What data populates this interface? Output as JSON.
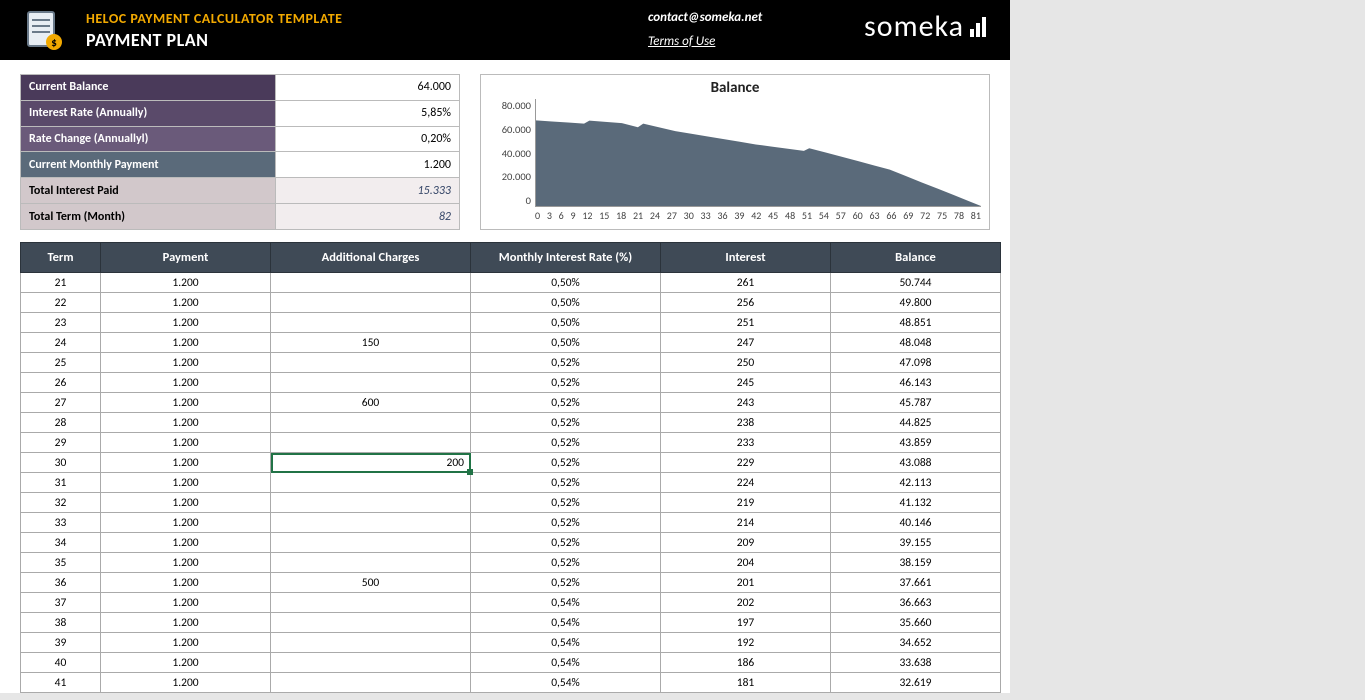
{
  "header": {
    "title1": "HELOC PAYMENT CALCULATOR TEMPLATE",
    "title2": "PAYMENT PLAN",
    "contact": "contact@someka.net",
    "terms": "Terms of Use",
    "logo": "someka"
  },
  "summary": [
    {
      "label": "Current Balance",
      "value": "64.000",
      "lab_cls": "purple1",
      "val_cls": ""
    },
    {
      "label": "Interest Rate (Annually)",
      "value": "5,85%",
      "lab_cls": "purple2",
      "val_cls": ""
    },
    {
      "label": "Rate Change (Annuallyl)",
      "value": "0,20%",
      "lab_cls": "purple3",
      "val_cls": ""
    },
    {
      "label": "Current Monthly Payment",
      "value": "1.200",
      "lab_cls": "slate",
      "val_cls": ""
    },
    {
      "label": "Total Interest Paid",
      "value": "15.333",
      "lab_cls": "gray1",
      "val_cls": "ital"
    },
    {
      "label": "Total Term (Month)",
      "value": "82",
      "lab_cls": "gray2",
      "val_cls": "ital"
    }
  ],
  "chart": {
    "title": "Balance",
    "ymax": 80000,
    "ytick_step": 20000,
    "yticks": [
      "80.000",
      "60.000",
      "40.000",
      "20.000",
      "0"
    ],
    "xticks": [
      "0",
      "3",
      "6",
      "9",
      "12",
      "15",
      "18",
      "21",
      "24",
      "27",
      "30",
      "33",
      "36",
      "39",
      "42",
      "45",
      "48",
      "51",
      "54",
      "57",
      "60",
      "63",
      "66",
      "69",
      "72",
      "75",
      "78",
      "81"
    ],
    "fill_color": "#5a6a7a",
    "background_color": "#ffffff",
    "points_norm": [
      [
        0,
        0.8
      ],
      [
        0.036,
        0.79
      ],
      [
        0.072,
        0.78
      ],
      [
        0.108,
        0.77
      ],
      [
        0.12,
        0.798
      ],
      [
        0.156,
        0.786
      ],
      [
        0.193,
        0.774
      ],
      [
        0.229,
        0.736
      ],
      [
        0.241,
        0.77
      ],
      [
        0.277,
        0.735
      ],
      [
        0.313,
        0.7
      ],
      [
        0.349,
        0.675
      ],
      [
        0.386,
        0.65
      ],
      [
        0.422,
        0.625
      ],
      [
        0.458,
        0.6
      ],
      [
        0.494,
        0.575
      ],
      [
        0.53,
        0.555
      ],
      [
        0.566,
        0.535
      ],
      [
        0.602,
        0.515
      ],
      [
        0.614,
        0.54
      ],
      [
        0.651,
        0.5
      ],
      [
        0.687,
        0.46
      ],
      [
        0.723,
        0.42
      ],
      [
        0.759,
        0.38
      ],
      [
        0.795,
        0.34
      ],
      [
        0.831,
        0.28
      ],
      [
        0.867,
        0.22
      ],
      [
        0.904,
        0.16
      ],
      [
        0.94,
        0.1
      ],
      [
        0.976,
        0.04
      ],
      [
        1.0,
        0.0
      ]
    ]
  },
  "table": {
    "columns": [
      "Term",
      "Payment",
      "Additional Charges",
      "Monthly Interest Rate (%)",
      "Interest",
      "Balance"
    ],
    "selected_cell": {
      "row_idx": 9,
      "col_idx": 2
    },
    "rows": [
      [
        "21",
        "1.200",
        "",
        "0,50%",
        "261",
        "50.744"
      ],
      [
        "22",
        "1.200",
        "",
        "0,50%",
        "256",
        "49.800"
      ],
      [
        "23",
        "1.200",
        "",
        "0,50%",
        "251",
        "48.851"
      ],
      [
        "24",
        "1.200",
        "150",
        "0,50%",
        "247",
        "48.048"
      ],
      [
        "25",
        "1.200",
        "",
        "0,52%",
        "250",
        "47.098"
      ],
      [
        "26",
        "1.200",
        "",
        "0,52%",
        "245",
        "46.143"
      ],
      [
        "27",
        "1.200",
        "600",
        "0,52%",
        "243",
        "45.787"
      ],
      [
        "28",
        "1.200",
        "",
        "0,52%",
        "238",
        "44.825"
      ],
      [
        "29",
        "1.200",
        "",
        "0,52%",
        "233",
        "43.859"
      ],
      [
        "30",
        "1.200",
        "200",
        "0,52%",
        "229",
        "43.088"
      ],
      [
        "31",
        "1.200",
        "",
        "0,52%",
        "224",
        "42.113"
      ],
      [
        "32",
        "1.200",
        "",
        "0,52%",
        "219",
        "41.132"
      ],
      [
        "33",
        "1.200",
        "",
        "0,52%",
        "214",
        "40.146"
      ],
      [
        "34",
        "1.200",
        "",
        "0,52%",
        "209",
        "39.155"
      ],
      [
        "35",
        "1.200",
        "",
        "0,52%",
        "204",
        "38.159"
      ],
      [
        "36",
        "1.200",
        "500",
        "0,52%",
        "201",
        "37.661"
      ],
      [
        "37",
        "1.200",
        "",
        "0,54%",
        "202",
        "36.663"
      ],
      [
        "38",
        "1.200",
        "",
        "0,54%",
        "197",
        "35.660"
      ],
      [
        "39",
        "1.200",
        "",
        "0,54%",
        "192",
        "34.652"
      ],
      [
        "40",
        "1.200",
        "",
        "0,54%",
        "186",
        "33.638"
      ],
      [
        "41",
        "1.200",
        "",
        "0,54%",
        "181",
        "32.619"
      ]
    ]
  }
}
